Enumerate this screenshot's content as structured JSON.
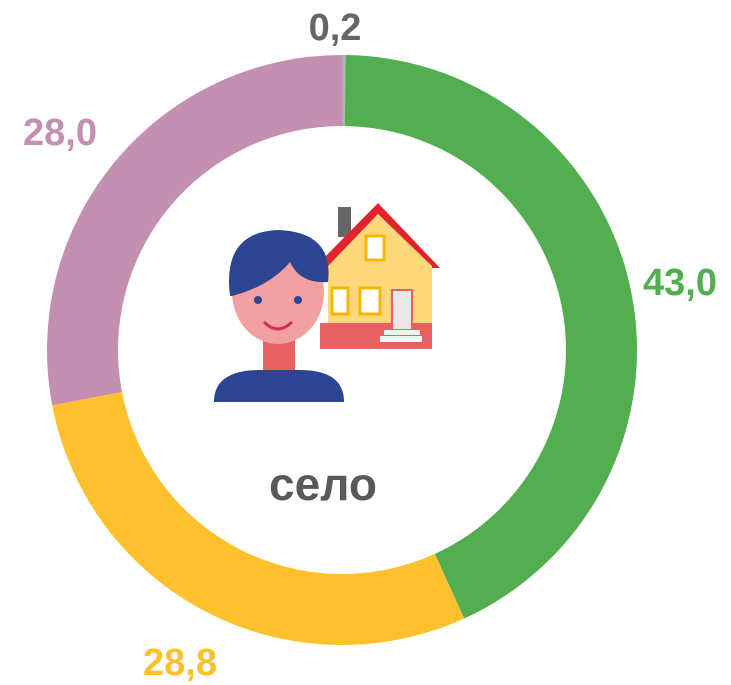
{
  "chart_data": {
    "type": "donut",
    "center_text": "село",
    "series": [
      {
        "name": null,
        "color": "#b3b3b3",
        "label_color": "#666666",
        "values": [
          0.2
        ],
        "value_labels": [
          "0,2"
        ]
      },
      {
        "name": null,
        "color": "#52ae4f",
        "label_color": "#52ae4f",
        "values": [
          43.0
        ],
        "value_labels": [
          "43,0"
        ]
      },
      {
        "name": null,
        "color": "#fdc12e",
        "label_color": "#fdc12e",
        "values": [
          28.8
        ],
        "value_labels": [
          "28,8"
        ]
      },
      {
        "name": null,
        "color": "#c490b1",
        "label_color": "#c490b1",
        "values": [
          28.0
        ],
        "value_labels": [
          "28,0"
        ]
      }
    ]
  }
}
